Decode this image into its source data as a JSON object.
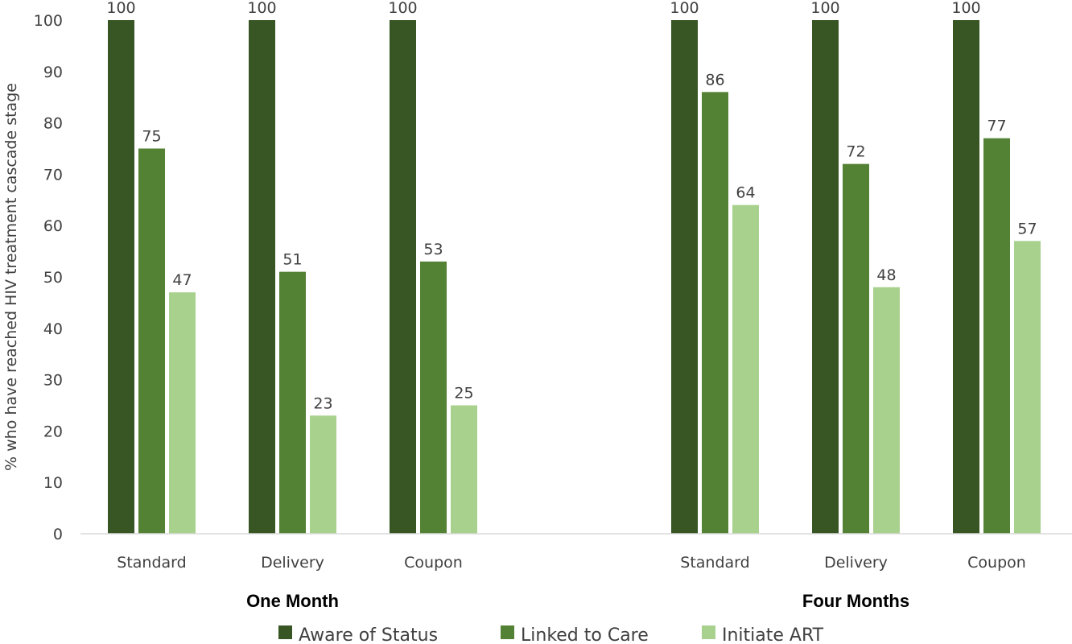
{
  "chart_data": {
    "type": "bar",
    "title": "",
    "ylabel": "% who have reached HIV treatment  cascade stage",
    "xlabel": "",
    "ylim": [
      0,
      100
    ],
    "yticks": [
      0,
      10,
      20,
      30,
      40,
      50,
      60,
      70,
      80,
      90,
      100
    ],
    "grid": false,
    "legend_position": "bottom",
    "groups": [
      {
        "label": "One Month",
        "categories": [
          "Standard",
          "Delivery",
          "Coupon"
        ]
      },
      {
        "label": "Four Months",
        "categories": [
          "Standard",
          "Delivery",
          "Coupon"
        ]
      }
    ],
    "series": [
      {
        "name": "Aware of Status",
        "color": "#375623",
        "values": [
          [
            100,
            100,
            100
          ],
          [
            100,
            100,
            100
          ]
        ]
      },
      {
        "name": "Linked to Care",
        "color": "#548235",
        "values": [
          [
            75,
            51,
            53
          ],
          [
            86,
            72,
            77
          ]
        ]
      },
      {
        "name": "Initiate ART",
        "color": "#a9d18e",
        "values": [
          [
            47,
            23,
            25
          ],
          [
            64,
            48,
            57
          ]
        ]
      }
    ]
  }
}
